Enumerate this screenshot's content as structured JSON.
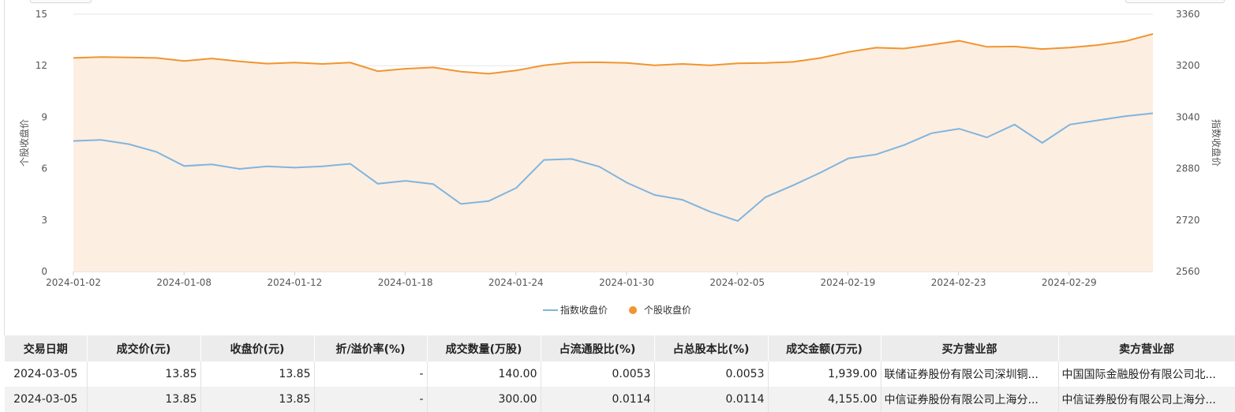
{
  "chart_data": {
    "type": "line",
    "x_ticks": [
      "2024-01-02",
      "2024-01-08",
      "2024-01-12",
      "2024-01-18",
      "2024-01-24",
      "2024-01-30",
      "2024-02-05",
      "2024-02-19",
      "2024-02-23",
      "2024-02-29"
    ],
    "y_left": {
      "label": "个股收盘价",
      "ticks": [
        0,
        3,
        6,
        9,
        12,
        15
      ],
      "range": [
        0,
        15
      ]
    },
    "y_right": {
      "label": "指数收盘价",
      "ticks": [
        2560,
        2720,
        2880,
        3040,
        3200,
        3360
      ],
      "range": [
        2560,
        3360
      ]
    },
    "series": [
      {
        "name": "指数收盘价",
        "axis": "right",
        "color": "#7fb5de",
        "values": [
          2966,
          2969,
          2956,
          2932,
          2888,
          2893,
          2879,
          2887,
          2883,
          2887,
          2895,
          2833,
          2842,
          2832,
          2770,
          2779,
          2820,
          2907,
          2910,
          2886,
          2836,
          2798,
          2783,
          2746,
          2717,
          2791,
          2828,
          2868,
          2912,
          2924,
          2953,
          2990,
          3004,
          2977,
          3017,
          2960,
          3017,
          3030,
          3043,
          3052
        ]
      },
      {
        "name": "个股收盘价",
        "axis": "left",
        "color": "#f0952f",
        "fill": "#fdeee2",
        "values": [
          12.45,
          12.5,
          12.48,
          12.45,
          12.27,
          12.42,
          12.25,
          12.12,
          12.18,
          12.1,
          12.18,
          11.68,
          11.82,
          11.9,
          11.65,
          11.53,
          11.72,
          12.02,
          12.18,
          12.2,
          12.16,
          12.02,
          12.1,
          12.02,
          12.14,
          12.16,
          12.22,
          12.45,
          12.8,
          13.05,
          13.0,
          13.22,
          13.45,
          13.1,
          13.12,
          12.97,
          13.06,
          13.2,
          13.42,
          13.85
        ]
      }
    ],
    "legend": "bottom-center",
    "grid": true
  },
  "table": {
    "headers": [
      "交易日期",
      "成交价(元)",
      "收盘价(元)",
      "折/溢价率(%)",
      "成交数量(万股)",
      "占流通股比(%)",
      "占总股本比(%)",
      "成交金额(万元)",
      "买方营业部",
      "卖方营业部"
    ],
    "rows": [
      [
        "2024-03-05",
        "13.85",
        "13.85",
        "-",
        "140.00",
        "0.0053",
        "0.0053",
        "1,939.00",
        "联储证券股份有限公司深圳铜...",
        "中国国际金融股份有限公司北..."
      ],
      [
        "2024-03-05",
        "13.85",
        "13.85",
        "-",
        "300.00",
        "0.0114",
        "0.0114",
        "4,155.00",
        "中信证券股份有限公司上海分...",
        "中信证券股份有限公司上海分..."
      ]
    ]
  }
}
